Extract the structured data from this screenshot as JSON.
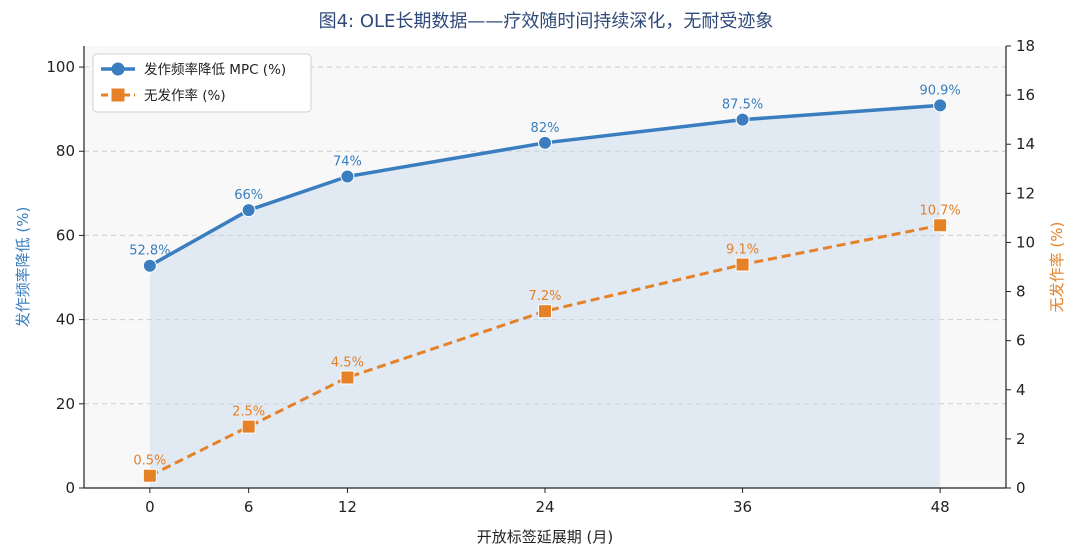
{
  "chart_data": {
    "type": "line",
    "title": "图4: OLE长期数据——疗效随时间持续深化，无耐受迹象",
    "xlabel": "开放标签延展期 (月)",
    "ylabel_left": "发作频率降低 (%)",
    "ylabel_right": "无发作率 (%)",
    "x": [
      0,
      6,
      12,
      24,
      36,
      48
    ],
    "xlim": [
      -4,
      52
    ],
    "ylim_left": [
      0,
      105
    ],
    "ylim_right": [
      0,
      18
    ],
    "yticks_left": [
      0,
      20,
      40,
      60,
      80,
      100
    ],
    "yticks_right": [
      0,
      2,
      4,
      6,
      8,
      10,
      12,
      14,
      16,
      18
    ],
    "grid": "horizontal dashed",
    "legend_position": "top-left",
    "series": [
      {
        "name": "发作频率降低 MPC (%)",
        "axis": "left",
        "values": [
          52.8,
          66,
          74,
          82,
          87.5,
          90.9
        ],
        "labels": [
          "52.8%",
          "66%",
          "74%",
          "82%",
          "87.5%",
          "90.9%"
        ],
        "color": "#3a7ebf",
        "style": "solid",
        "marker": "circle",
        "fill_area": true
      },
      {
        "name": "无发作率 (%)",
        "axis": "right",
        "values": [
          0.5,
          2.5,
          4.5,
          7.2,
          9.1,
          10.7
        ],
        "labels": [
          "0.5%",
          "2.5%",
          "4.5%",
          "7.2%",
          "9.1%",
          "10.7%"
        ],
        "color": "#e58127",
        "style": "dashed",
        "marker": "square"
      }
    ]
  }
}
